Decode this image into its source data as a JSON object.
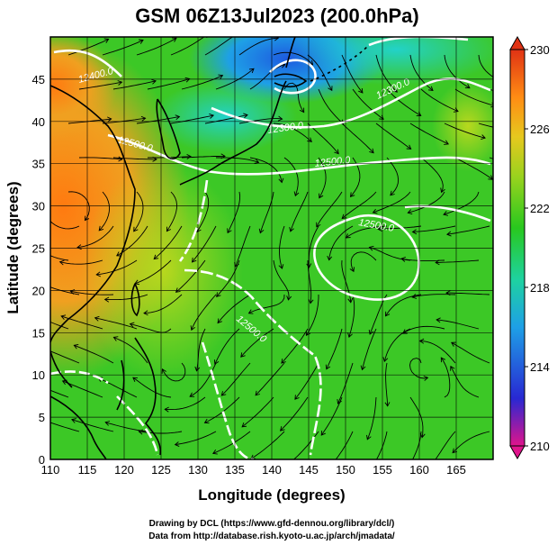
{
  "title": "GSM 06Z13Jul2023 (200.0hPa)",
  "xlabel": "Longitude (degrees)",
  "ylabel": "Latitude  (degrees)",
  "credits": [
    "Drawing by DCL (https://www.gfd-dennou.org/library/dcl/)",
    "Data from http://database.rish.kyoto-u.ac.jp/arch/jmadata/"
  ],
  "map": {
    "lon_range": [
      110,
      170
    ],
    "lat_range": [
      0,
      50
    ],
    "x_ticks": [
      "110",
      "115",
      "120",
      "125",
      "130",
      "135",
      "140",
      "145",
      "150",
      "155",
      "160",
      "165"
    ],
    "y_ticks": [
      "0",
      "5",
      "10",
      "15",
      "20",
      "25",
      "30",
      "35",
      "40",
      "45"
    ],
    "field": "temperature (colour shading) with wind streamlines and geopotential height contours",
    "contour_labels": [
      "12500.0",
      "12500.0",
      "12500.0",
      "12500.0",
      "12400.0",
      "12300.0",
      "12300.0"
    ],
    "colorbar": {
      "ticks": [
        "230",
        "226",
        "222",
        "218",
        "214",
        "210"
      ],
      "range": [
        210,
        230
      ],
      "colors": [
        "#e0148c",
        "#2828d2",
        "#1ea0e6",
        "#1ed2a0",
        "#28c81e",
        "#9ad21e",
        "#e6c81e",
        "#ff8c14",
        "#e03214"
      ]
    },
    "colors": {
      "frame": "#000000",
      "grid": "#000000",
      "coastline": "#000000",
      "contour": "#ffffff",
      "streamline": "#000000"
    }
  }
}
